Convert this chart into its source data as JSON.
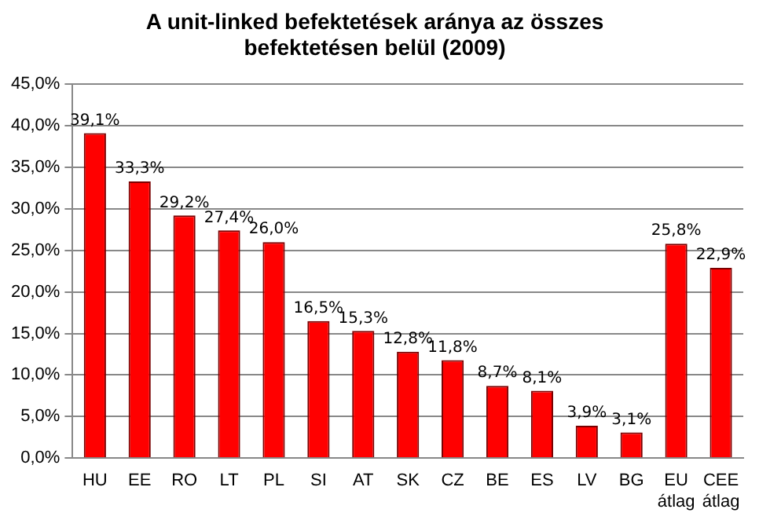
{
  "chart_data": {
    "type": "bar",
    "title": "A unit-linked befektetések aránya az összes befektetésen belül (2009)",
    "categories": [
      "HU",
      "EE",
      "RO",
      "LT",
      "PL",
      "SI",
      "AT",
      "SK",
      "CZ",
      "BE",
      "ES",
      "LV",
      "BG",
      "EU átlag",
      "CEE átlag"
    ],
    "values": [
      39.1,
      33.3,
      29.2,
      27.4,
      26.0,
      16.5,
      15.3,
      12.8,
      11.8,
      8.7,
      8.1,
      3.9,
      3.1,
      25.8,
      22.9
    ],
    "value_labels": [
      "39,1%",
      "33,3%",
      "29,2%",
      "27,4%",
      "26,0%",
      "16,5%",
      "15,3%",
      "12,8%",
      "11,8%",
      "8,7%",
      "8,1%",
      "3,9%",
      "3,1%",
      "25,8%",
      "22,9%"
    ],
    "color": "#ff0000",
    "ylim": [
      0,
      45
    ],
    "yticks": [
      {
        "value": 0,
        "label": "0,0%"
      },
      {
        "value": 5,
        "label": "5,0%"
      },
      {
        "value": 10,
        "label": "10,0%"
      },
      {
        "value": 15,
        "label": "15,0%"
      },
      {
        "value": 20,
        "label": "20,0%"
      },
      {
        "value": 25,
        "label": "25,0%"
      },
      {
        "value": 30,
        "label": "30,0%"
      },
      {
        "value": 35,
        "label": "35,0%"
      },
      {
        "value": 40,
        "label": "40,0%"
      },
      {
        "value": 45,
        "label": "45,0%"
      }
    ],
    "grid": "y",
    "legend": false
  }
}
